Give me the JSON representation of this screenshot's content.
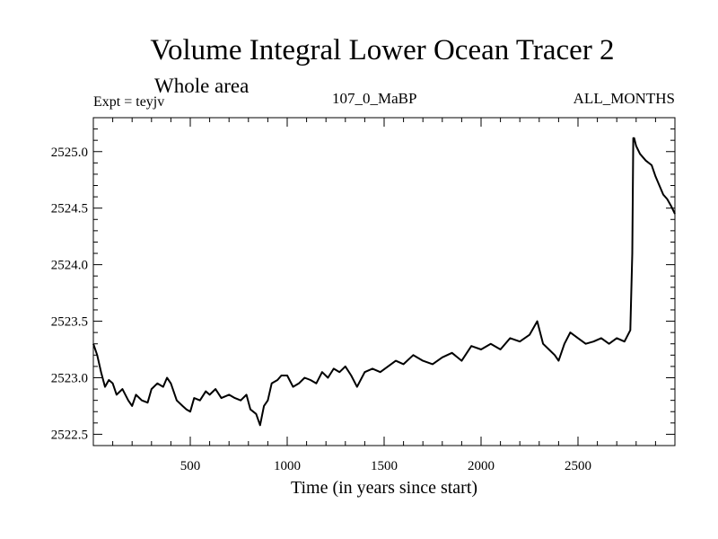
{
  "chart_data": {
    "type": "line",
    "title": "Volume Integral Lower Ocean Tracer 2",
    "subtitle": "Whole area",
    "experiment_label": "Expt = teyjv",
    "center_label": "107_0_MaBP",
    "right_label": "ALL_MONTHS",
    "xlabel": "Time (in years since start)",
    "ylabel": "",
    "xlim": [
      0,
      3000
    ],
    "ylim": [
      2522.4,
      2525.3
    ],
    "x_ticks": [
      500,
      1000,
      1500,
      2000,
      2500
    ],
    "y_ticks": [
      2522.5,
      2523.0,
      2523.5,
      2524.0,
      2524.5,
      2525.0
    ],
    "y_tick_labels": [
      "2522.5",
      "2523.0",
      "2523.5",
      "2524.0",
      "2524.5",
      "2525.0"
    ],
    "series": [
      {
        "name": "Volume Integral Lower Ocean Tracer 2",
        "color": "#000000",
        "x": [
          0,
          20,
          40,
          60,
          80,
          100,
          120,
          150,
          180,
          200,
          220,
          250,
          280,
          300,
          330,
          360,
          380,
          400,
          430,
          460,
          480,
          500,
          520,
          550,
          580,
          600,
          630,
          660,
          700,
          730,
          760,
          790,
          810,
          840,
          860,
          880,
          900,
          920,
          950,
          970,
          1000,
          1030,
          1060,
          1090,
          1120,
          1150,
          1180,
          1210,
          1240,
          1270,
          1300,
          1330,
          1360,
          1400,
          1440,
          1480,
          1520,
          1560,
          1600,
          1650,
          1700,
          1750,
          1800,
          1850,
          1900,
          1950,
          2000,
          2050,
          2100,
          2150,
          2200,
          2250,
          2290,
          2320,
          2350,
          2380,
          2400,
          2430,
          2460,
          2500,
          2540,
          2580,
          2620,
          2660,
          2700,
          2740,
          2770,
          2780,
          2785,
          2790,
          2800,
          2820,
          2850,
          2880,
          2900,
          2920,
          2940,
          2960,
          2980,
          3000
        ],
        "values": [
          2523.3,
          2523.2,
          2523.05,
          2522.92,
          2522.98,
          2522.95,
          2522.85,
          2522.9,
          2522.8,
          2522.75,
          2522.85,
          2522.8,
          2522.78,
          2522.9,
          2522.95,
          2522.92,
          2523.0,
          2522.95,
          2522.8,
          2522.75,
          2522.72,
          2522.7,
          2522.82,
          2522.8,
          2522.88,
          2522.85,
          2522.9,
          2522.82,
          2522.85,
          2522.82,
          2522.8,
          2522.85,
          2522.72,
          2522.68,
          2522.58,
          2522.75,
          2522.8,
          2522.95,
          2522.98,
          2523.02,
          2523.02,
          2522.92,
          2522.95,
          2523.0,
          2522.98,
          2522.95,
          2523.05,
          2523.0,
          2523.08,
          2523.05,
          2523.1,
          2523.02,
          2522.92,
          2523.05,
          2523.08,
          2523.05,
          2523.1,
          2523.15,
          2523.12,
          2523.2,
          2523.15,
          2523.12,
          2523.18,
          2523.22,
          2523.15,
          2523.28,
          2523.25,
          2523.3,
          2523.25,
          2523.35,
          2523.32,
          2523.38,
          2523.5,
          2523.3,
          2523.25,
          2523.2,
          2523.15,
          2523.3,
          2523.4,
          2523.35,
          2523.3,
          2523.32,
          2523.35,
          2523.3,
          2523.35,
          2523.32,
          2523.42,
          2524.1,
          2525.12,
          2525.12,
          2525.05,
          2524.98,
          2524.92,
          2524.88,
          2524.78,
          2524.7,
          2524.62,
          2524.58,
          2524.52,
          2524.45
        ]
      }
    ]
  }
}
